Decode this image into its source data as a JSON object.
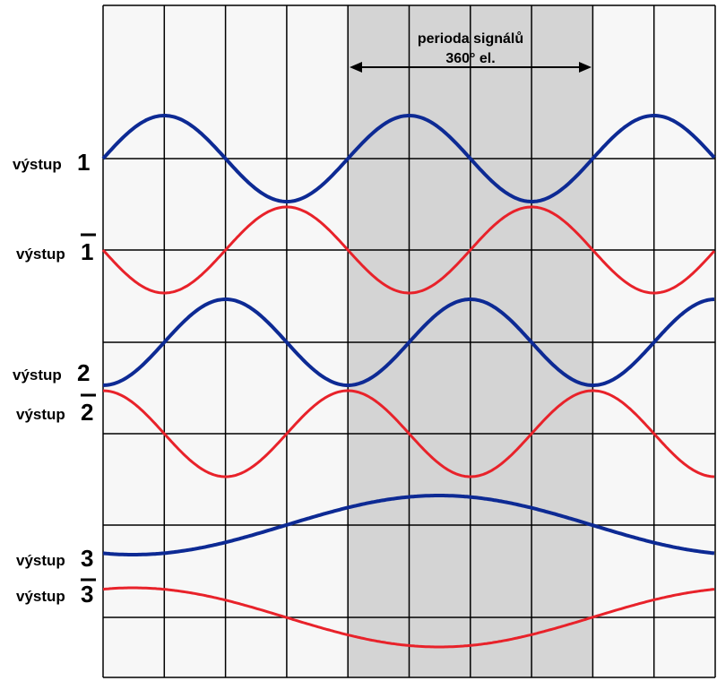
{
  "header": {
    "line1": "perioda signálů",
    "line2": "360° el."
  },
  "outputs": [
    {
      "label": "výstup",
      "number": "1"
    },
    {
      "label": "výstup",
      "number": "1"
    },
    {
      "label": "výstup",
      "number": "2"
    },
    {
      "label": "výstup",
      "number": "2"
    },
    {
      "label": "výstup",
      "number": "3"
    },
    {
      "label": "výstup",
      "number": "3"
    }
  ]
}
